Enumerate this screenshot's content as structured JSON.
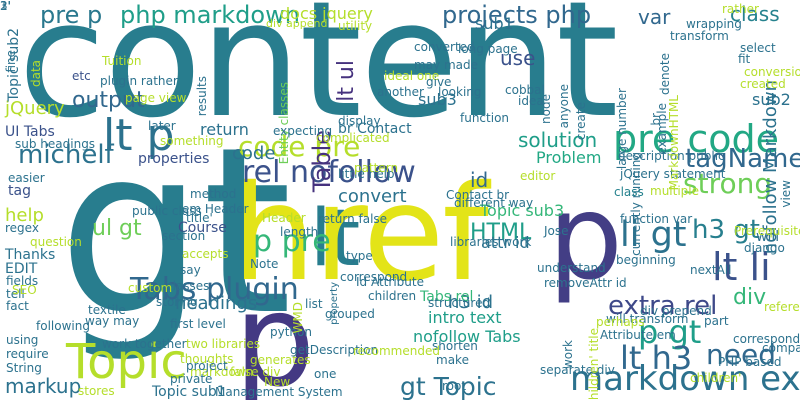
{
  "cloud": {
    "background": "#ffffff",
    "words": [
      {
        "text": "content",
        "color": "#287d8e"
      },
      {
        "text": "gt",
        "color": "#287d8e"
      },
      {
        "text": "lt",
        "color": "#287d8e"
      },
      {
        "text": "href",
        "color": "#e3e418"
      },
      {
        "text": "p",
        "color": "#433e85"
      },
      {
        "text": "p",
        "color": "#443983"
      },
      {
        "text": "Topic",
        "color": "#b5de2b"
      },
      {
        "text": "lt p",
        "color": "#2c728e"
      },
      {
        "text": "rel nofollow",
        "color": "#3b528b"
      },
      {
        "text": "code pre",
        "color": "#b5de2b"
      },
      {
        "text": "pre code",
        "color": "#22a884"
      },
      {
        "text": "markdown extra",
        "color": "#2c728e"
      },
      {
        "text": "lt li",
        "color": "#3b528b"
      },
      {
        "text": "li gt",
        "color": "#2c728e"
      },
      {
        "text": "p gt",
        "color": "#1f9e89"
      },
      {
        "text": "p pre",
        "color": "#35b779"
      },
      {
        "text": "Tabs plugin",
        "color": "#31688e"
      },
      {
        "text": "lt h3",
        "color": "#31688e"
      },
      {
        "text": "gt Topic",
        "color": "#2c728e"
      },
      {
        "text": "extra rel",
        "color": "#3e4989"
      },
      {
        "text": "need",
        "color": "#31688e"
      },
      {
        "text": "h3 gt",
        "color": "#277f8e"
      },
      {
        "text": "strong",
        "color": "#6ece58"
      },
      {
        "text": "tagName",
        "color": "#31688e"
      },
      {
        "text": "michelf",
        "color": "#2c728e"
      },
      {
        "text": "Table",
        "color": "#46327e"
      },
      {
        "text": "projects php",
        "color": "#31688e"
      },
      {
        "text": "php markdown",
        "color": "#1f9e89"
      },
      {
        "text": "docs jquery",
        "color": "#b5de2b"
      },
      {
        "text": "pre p",
        "color": "#2a788e"
      },
      {
        "text": "var",
        "color": "#31688e"
      },
      {
        "text": "class",
        "color": "#26828e"
      },
      {
        "text": "sub1",
        "color": "#2c728e"
      },
      {
        "text": "sub2",
        "color": "#2c728e"
      },
      {
        "text": "sub3",
        "color": "#2c728e"
      },
      {
        "text": "use",
        "color": "#3b528b"
      },
      {
        "text": "lt ul",
        "color": "#46327e"
      },
      {
        "text": "output",
        "color": "#31688e"
      },
      {
        "text": "code",
        "color": "#2c728e"
      },
      {
        "text": "return",
        "color": "#2c728e"
      },
      {
        "text": "br Contact",
        "color": "#2c728e"
      },
      {
        "text": "solution",
        "color": "#1f9e89"
      },
      {
        "text": "Problem",
        "color": "#22a884"
      },
      {
        "text": "id",
        "color": "#31688e"
      },
      {
        "text": "convert",
        "color": "#2c728e"
      },
      {
        "text": "HTML",
        "color": "#1f9e89"
      },
      {
        "text": "Topic sub3",
        "color": "#35b779"
      },
      {
        "text": "ul gt",
        "color": "#6ece58"
      },
      {
        "text": "attr id",
        "color": "#2c728e"
      },
      {
        "text": "div",
        "color": "#35b779"
      },
      {
        "text": "headings",
        "color": "#2c728e"
      },
      {
        "text": "h3 id",
        "color": "#2c728e"
      },
      {
        "text": "intro text",
        "color": "#1f9e89"
      },
      {
        "text": "nofollow Tabs",
        "color": "#1f9e89"
      },
      {
        "text": "markup",
        "color": "#2c728e"
      },
      {
        "text": "Topic sub1",
        "color": "#2c728e"
      },
      {
        "text": "Tabs rel",
        "color": "#35b779"
      },
      {
        "text": "nofollow Markdown",
        "color": "#2c728e"
      },
      {
        "text": "help",
        "color": "#b5de2b"
      },
      {
        "text": "Course",
        "color": "#3b528b"
      },
      {
        "text": "EDIT",
        "color": "#2c728e"
      },
      {
        "text": "Thanks",
        "color": "#2c728e"
      },
      {
        "text": "properties",
        "color": "#3b528b"
      },
      {
        "text": "UI Tabs",
        "color": "#3b528b"
      },
      {
        "text": "jQuery",
        "color": "#b5de2b"
      },
      {
        "text": "tag",
        "color": "#3b528b"
      },
      {
        "text": "sub headings",
        "color": "#2c728e"
      },
      {
        "text": "Topic sub2",
        "color": "#2c728e"
      },
      {
        "text": "plugin rather",
        "color": "#2c728e"
      },
      {
        "text": "page view",
        "color": "#b5de2b"
      },
      {
        "text": "Entity classes",
        "color": "#6ece58"
      },
      {
        "text": "etc",
        "color": "#3b528b"
      },
      {
        "text": "later",
        "color": "#2c728e"
      },
      {
        "text": "something",
        "color": "#b5de2b"
      },
      {
        "text": "method",
        "color": "#2c728e"
      },
      {
        "text": "em Header",
        "color": "#2c728e"
      },
      {
        "text": "first level",
        "color": "#2c728e"
      },
      {
        "text": "way may",
        "color": "#2c728e"
      },
      {
        "text": "using",
        "color": "#2c728e"
      },
      {
        "text": "require",
        "color": "#2c728e"
      },
      {
        "text": "String",
        "color": "#2c728e"
      },
      {
        "text": "fact",
        "color": "#2c728e"
      },
      {
        "text": "tell",
        "color": "#2c728e"
      },
      {
        "text": "fields",
        "color": "#2c728e"
      },
      {
        "text": "two libraries",
        "color": "#b5de2b"
      },
      {
        "text": "work together",
        "color": "#2c728e"
      },
      {
        "text": "thoughts",
        "color": "#b5de2b"
      },
      {
        "text": "generates",
        "color": "#b5de2b"
      },
      {
        "text": "false div",
        "color": "#b5de2b"
      },
      {
        "text": "Management System",
        "color": "#2c728e"
      },
      {
        "text": "Note",
        "color": "#2c728e"
      },
      {
        "text": "return false",
        "color": "#2c728e"
      },
      {
        "text": "length",
        "color": "#2c728e"
      },
      {
        "text": "expecting",
        "color": "#2c728e"
      },
      {
        "text": "Contact br",
        "color": "#2c728e"
      },
      {
        "text": "libraries work",
        "color": "#2c728e"
      },
      {
        "text": "large number",
        "color": "#2c728e"
      },
      {
        "text": "currently running",
        "color": "#2c728e"
      },
      {
        "text": "jQuery statement",
        "color": "#2c728e"
      },
      {
        "text": "function var",
        "color": "#2c728e"
      },
      {
        "text": "beginning",
        "color": "#2c728e"
      },
      {
        "text": "will",
        "color": "#2c728e"
      },
      {
        "text": "nextAll",
        "color": "#2c728e"
      },
      {
        "text": "div prepend",
        "color": "#2c728e"
      },
      {
        "text": "corresponding",
        "color": "#2c728e"
      },
      {
        "text": "PHP based",
        "color": "#2c728e"
      },
      {
        "text": "separate div",
        "color": "#2c728e"
      },
      {
        "text": "Attribute em",
        "color": "#2c728e"
      },
      {
        "text": "will transform",
        "color": "#2c728e"
      },
      {
        "text": "structured",
        "color": "#2c728e"
      },
      {
        "text": "Id Attribute",
        "color": "#2c728e"
      },
      {
        "text": "removeAttr id",
        "color": "#2c728e"
      },
      {
        "text": "understand",
        "color": "#2c728e"
      },
      {
        "text": "shorten",
        "color": "#2c728e"
      },
      {
        "text": "make",
        "color": "#2c728e"
      },
      {
        "text": "children",
        "color": "#2c728e"
      },
      {
        "text": "list",
        "color": "#2c728e"
      },
      {
        "text": "property",
        "color": "#2c728e"
      },
      {
        "text": "grouped",
        "color": "#2c728e"
      },
      {
        "text": "python",
        "color": "#2c728e"
      },
      {
        "text": "getDescription",
        "color": "#2c728e"
      },
      {
        "text": "section",
        "color": "#2c728e"
      },
      {
        "text": "say",
        "color": "#2c728e"
      },
      {
        "text": "classes",
        "color": "#2c728e"
      },
      {
        "text": "Header",
        "color": "#b5de2b"
      },
      {
        "text": "easier",
        "color": "#2c728e"
      },
      {
        "text": "little help",
        "color": "#2c728e"
      },
      {
        "text": "div append",
        "color": "#b5de2b"
      },
      {
        "text": "ideal one",
        "color": "#b5de2b"
      },
      {
        "text": "converted",
        "color": "#2c728e"
      },
      {
        "text": "long page",
        "color": "#2c728e"
      },
      {
        "text": "may made",
        "color": "#2c728e"
      },
      {
        "text": "give",
        "color": "#2c728e"
      },
      {
        "text": "looking",
        "color": "#2c728e"
      },
      {
        "text": "display",
        "color": "#2c728e"
      },
      {
        "text": "another",
        "color": "#2c728e"
      },
      {
        "text": "results",
        "color": "#2c728e"
      },
      {
        "text": "cobbal",
        "color": "#2c728e"
      },
      {
        "text": "idea",
        "color": "#2c728e"
      },
      {
        "text": "function",
        "color": "#2c728e"
      },
      {
        "text": "node",
        "color": "#2c728e"
      },
      {
        "text": "anyone",
        "color": "#2c728e"
      },
      {
        "text": "create",
        "color": "#2c728e"
      },
      {
        "text": "description public",
        "color": "#2c728e"
      },
      {
        "text": "transform",
        "color": "#2c728e"
      },
      {
        "text": "wrapping",
        "color": "#2c728e"
      },
      {
        "text": "fit",
        "color": "#2c728e"
      },
      {
        "text": "conversion",
        "color": "#b5de2b"
      },
      {
        "text": "select",
        "color": "#2c728e"
      },
      {
        "text": "created",
        "color": "#b5de2b"
      },
      {
        "text": "denote",
        "color": "#2c728e"
      },
      {
        "text": "rather",
        "color": "#b5de2b"
      },
      {
        "text": "different way",
        "color": "#2c728e"
      },
      {
        "text": "class",
        "color": "#26828e"
      },
      {
        "text": "Jose",
        "color": "#2c728e"
      },
      {
        "text": "editor",
        "color": "#b5de2b"
      },
      {
        "text": "multiple",
        "color": "#b5de2b"
      },
      {
        "text": "view",
        "color": "#2c728e"
      },
      {
        "text": "django",
        "color": "#2c728e"
      },
      {
        "text": "Prerequisites",
        "color": "#b5de2b"
      },
      {
        "text": "references",
        "color": "#b5de2b"
      },
      {
        "text": "part",
        "color": "#2c728e"
      },
      {
        "text": "compatible",
        "color": "#2c728e"
      },
      {
        "text": "children'",
        "color": "#b5de2b"
      },
      {
        "text": "root",
        "color": "#2c728e"
      },
      {
        "text": "perhaps",
        "color": "#b5de2b"
      },
      {
        "text": "children' title",
        "color": "#b5de2b"
      },
      {
        "text": "work",
        "color": "#2c728e"
      },
      {
        "text": "New",
        "color": "#b5de2b"
      },
      {
        "text": "markdown",
        "color": "#b5de2b"
      },
      {
        "text": "stores",
        "color": "#b5de2b"
      },
      {
        "text": "private",
        "color": "#2c728e"
      },
      {
        "text": "one",
        "color": "#2c728e"
      },
      {
        "text": "complicated",
        "color": "#b5de2b"
      },
      {
        "text": "type",
        "color": "#2c728e"
      },
      {
        "text": "title'",
        "color": "#2c728e"
      },
      {
        "text": "accepts",
        "color": "#b5de2b"
      },
      {
        "text": "regex",
        "color": "#2c728e"
      },
      {
        "text": "question",
        "color": "#b5de2b"
      },
      {
        "text": "correspond",
        "color": "#2c728e"
      },
      {
        "text": "recommended",
        "color": "#b5de2b"
      },
      {
        "text": "project",
        "color": "#2c728e"
      },
      {
        "text": "custom",
        "color": "#b5de2b"
      },
      {
        "text": "following",
        "color": "#2c728e"
      },
      {
        "text": "textile",
        "color": "#2c728e"
      },
      {
        "text": "WMD",
        "color": "#b5de2b"
      },
      {
        "text": "Tuition",
        "color": "#b5de2b"
      },
      {
        "text": "data",
        "color": "#b5de2b"
      },
      {
        "text": "fine",
        "color": "#2c728e"
      },
      {
        "text": "utility",
        "color": "#b5de2b"
      },
      {
        "text": "example",
        "color": "#2c728e"
      },
      {
        "text": "MarkdownHTML",
        "color": "#b5de2b"
      },
      {
        "text": "br",
        "color": "#2c728e"
      },
      {
        "text": "storing",
        "color": "#2c728e"
      },
      {
        "text": "pattern",
        "color": "#b5de2b"
      },
      {
        "text": "public class",
        "color": "#2c728e"
      },
      {
        "text": "SEO",
        "color": "#b5de2b"
      },
      {
        "text": "1'",
        "color": "#2c728e"
      },
      {
        "text": "2'",
        "color": "#2c728e"
      },
      {
        "text": "3'",
        "color": "#2c728e"
      }
    ]
  }
}
